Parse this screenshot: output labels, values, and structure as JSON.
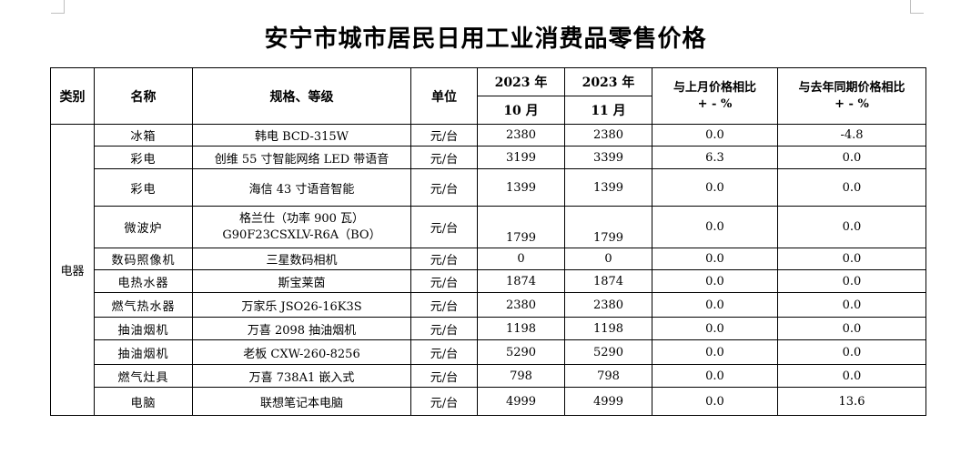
{
  "title": "安宁市城市居民日用工业消费品零售价格",
  "headers": {
    "category": "类别",
    "name": "名称",
    "spec": "规格、等级",
    "unit": "单位",
    "year1": "2023 年",
    "month1": "10 月",
    "year2": "2023 年",
    "month2": "11 月",
    "mom_line1": "与上月价格相比",
    "mom_line2": "+ - %",
    "yoy_line1": "与去年同期价格相比",
    "yoy_line2": "+ - %"
  },
  "category": "电器",
  "rows": [
    {
      "name": "冰箱",
      "spec": "韩电 BCD-315W",
      "unit": "元/台",
      "oct": "2380",
      "nov": "2380",
      "mom": "0.0",
      "yoy": "-4.8"
    },
    {
      "name": "彩电",
      "spec": "创维 55 寸智能网络 LED 带语音",
      "unit": "元/台",
      "oct": "3199",
      "nov": "3399",
      "mom": "6.3",
      "yoy": "0.0"
    },
    {
      "name": "彩电",
      "spec": "海信 43 寸语音智能",
      "unit": "元/台",
      "oct": "1399",
      "nov": "1399",
      "mom": "0.0",
      "yoy": "0.0"
    },
    {
      "name": "微波炉",
      "spec_line1": "格兰仕（功率 900 瓦）",
      "spec_line2": "G90F23CSXLV-R6A（BO）",
      "unit": "元/台",
      "oct": "1799",
      "nov": "1799",
      "mom": "0.0",
      "yoy": "0.0"
    },
    {
      "name": "数码照像机",
      "spec": "三星数码相机",
      "unit": "元/台",
      "oct": "0",
      "nov": "0",
      "mom": "0.0",
      "yoy": "0.0"
    },
    {
      "name": "电热水器",
      "spec": "斯宝莱茵",
      "unit": "元/台",
      "oct": "1874",
      "nov": "1874",
      "mom": "0.0",
      "yoy": "0.0"
    },
    {
      "name": "燃气热水器",
      "spec": "万家乐 JSO26-16K3S",
      "unit": "元/台",
      "oct": "2380",
      "nov": "2380",
      "mom": "0.0",
      "yoy": "0.0"
    },
    {
      "name": "抽油烟机",
      "spec": "万喜 2098 抽油烟机",
      "unit": "元/台",
      "oct": "1198",
      "nov": "1198",
      "mom": "0.0",
      "yoy": "0.0"
    },
    {
      "name": "抽油烟机",
      "spec": "老板 CXW-260-8256",
      "unit": "元/台",
      "oct": "5290",
      "nov": "5290",
      "mom": "0.0",
      "yoy": "0.0"
    },
    {
      "name": "燃气灶具",
      "spec": "万喜 738A1 嵌入式",
      "unit": "元/台",
      "oct": "798",
      "nov": "798",
      "mom": "0.0",
      "yoy": "0.0"
    },
    {
      "name": "电脑",
      "spec": "联想笔记本电脑",
      "unit": "元/台",
      "oct": "4999",
      "nov": "4999",
      "mom": "0.0",
      "yoy": "13.6"
    }
  ]
}
